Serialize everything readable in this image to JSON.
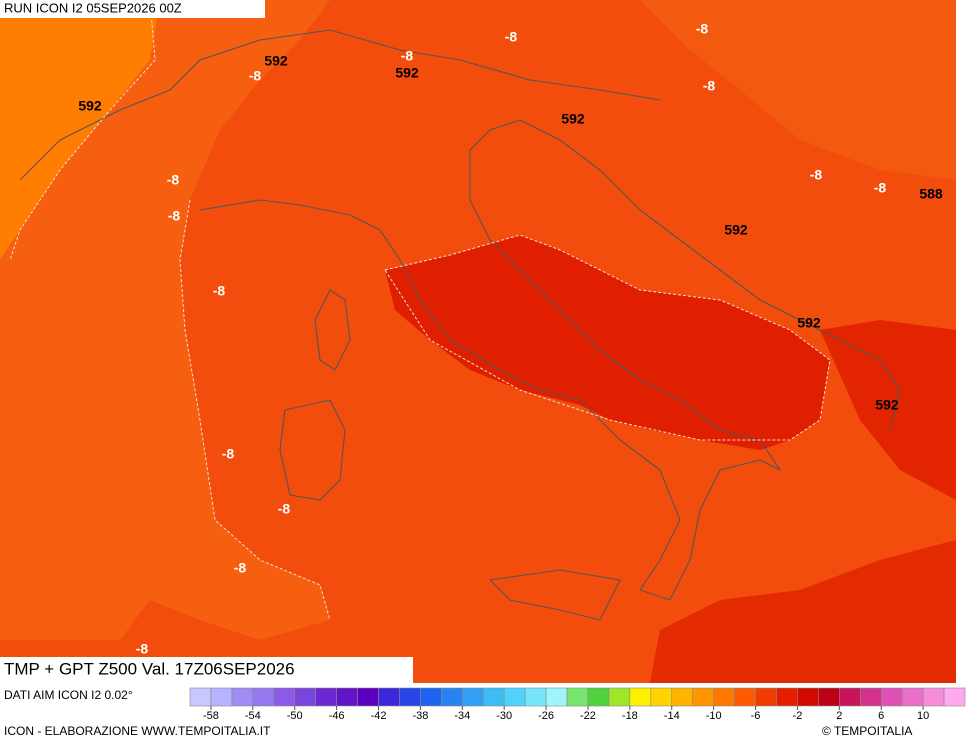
{
  "header": {
    "run": "RUN ICON I2 05SEP2026 00Z"
  },
  "map_labels": [
    "592",
    "592",
    "-8",
    "-8",
    "592",
    "-8",
    "-8",
    "-8",
    "592",
    "-8",
    "-8",
    "-8",
    "-8",
    "588",
    "592",
    "-8",
    "592",
    "592",
    "-8",
    "-8",
    "-8",
    "-8"
  ],
  "footer": {
    "title": "TMP + GPT Z500 Val. 17Z06SEP2026",
    "source": "DATI AIM ICON I2 0.02°",
    "credit": "ICON - ELABORAZIONE WWW.TEMPOITALIA.IT",
    "copyright": "© TEMPOITALIA"
  },
  "colorbar": {
    "ticks": [
      -58,
      -54,
      -50,
      -46,
      -42,
      -38,
      -34,
      -30,
      -26,
      -22,
      -18,
      -14,
      -10,
      -6,
      -2,
      2,
      6,
      10
    ],
    "colors": [
      "#c8c8ff",
      "#b4b4ff",
      "#a08cf5",
      "#9678f0",
      "#8c5ae6",
      "#7846dc",
      "#6e28d2",
      "#6414c8",
      "#5a00be",
      "#3c28dc",
      "#2846e6",
      "#1e64f0",
      "#2882f0",
      "#32a0f5",
      "#3cbef5",
      "#50d2fa",
      "#78e6fa",
      "#a0f5fa",
      "#78e66e",
      "#50d23c",
      "#a0e628",
      "#fff000",
      "#ffd200",
      "#ffb400",
      "#ff9600",
      "#ff7800",
      "#ff5a00",
      "#f03c00",
      "#e61e00",
      "#d20a00",
      "#be0014",
      "#c8145a",
      "#d2328c",
      "#e150b4",
      "#eb6ec8",
      "#f58cdc",
      "#ffaaf0"
    ]
  }
}
